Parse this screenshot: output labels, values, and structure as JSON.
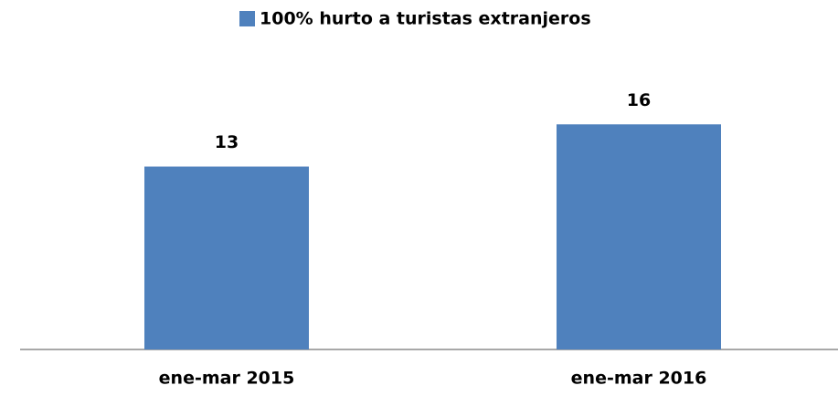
{
  "chart_data": {
    "type": "bar",
    "categories": [
      "ene-mar 2015",
      "ene-mar 2016"
    ],
    "series": [
      {
        "name": "100% hurto a turistas extranjeros",
        "color": "#4f81bd",
        "values": [
          13,
          16
        ]
      }
    ],
    "legend": "top"
  }
}
